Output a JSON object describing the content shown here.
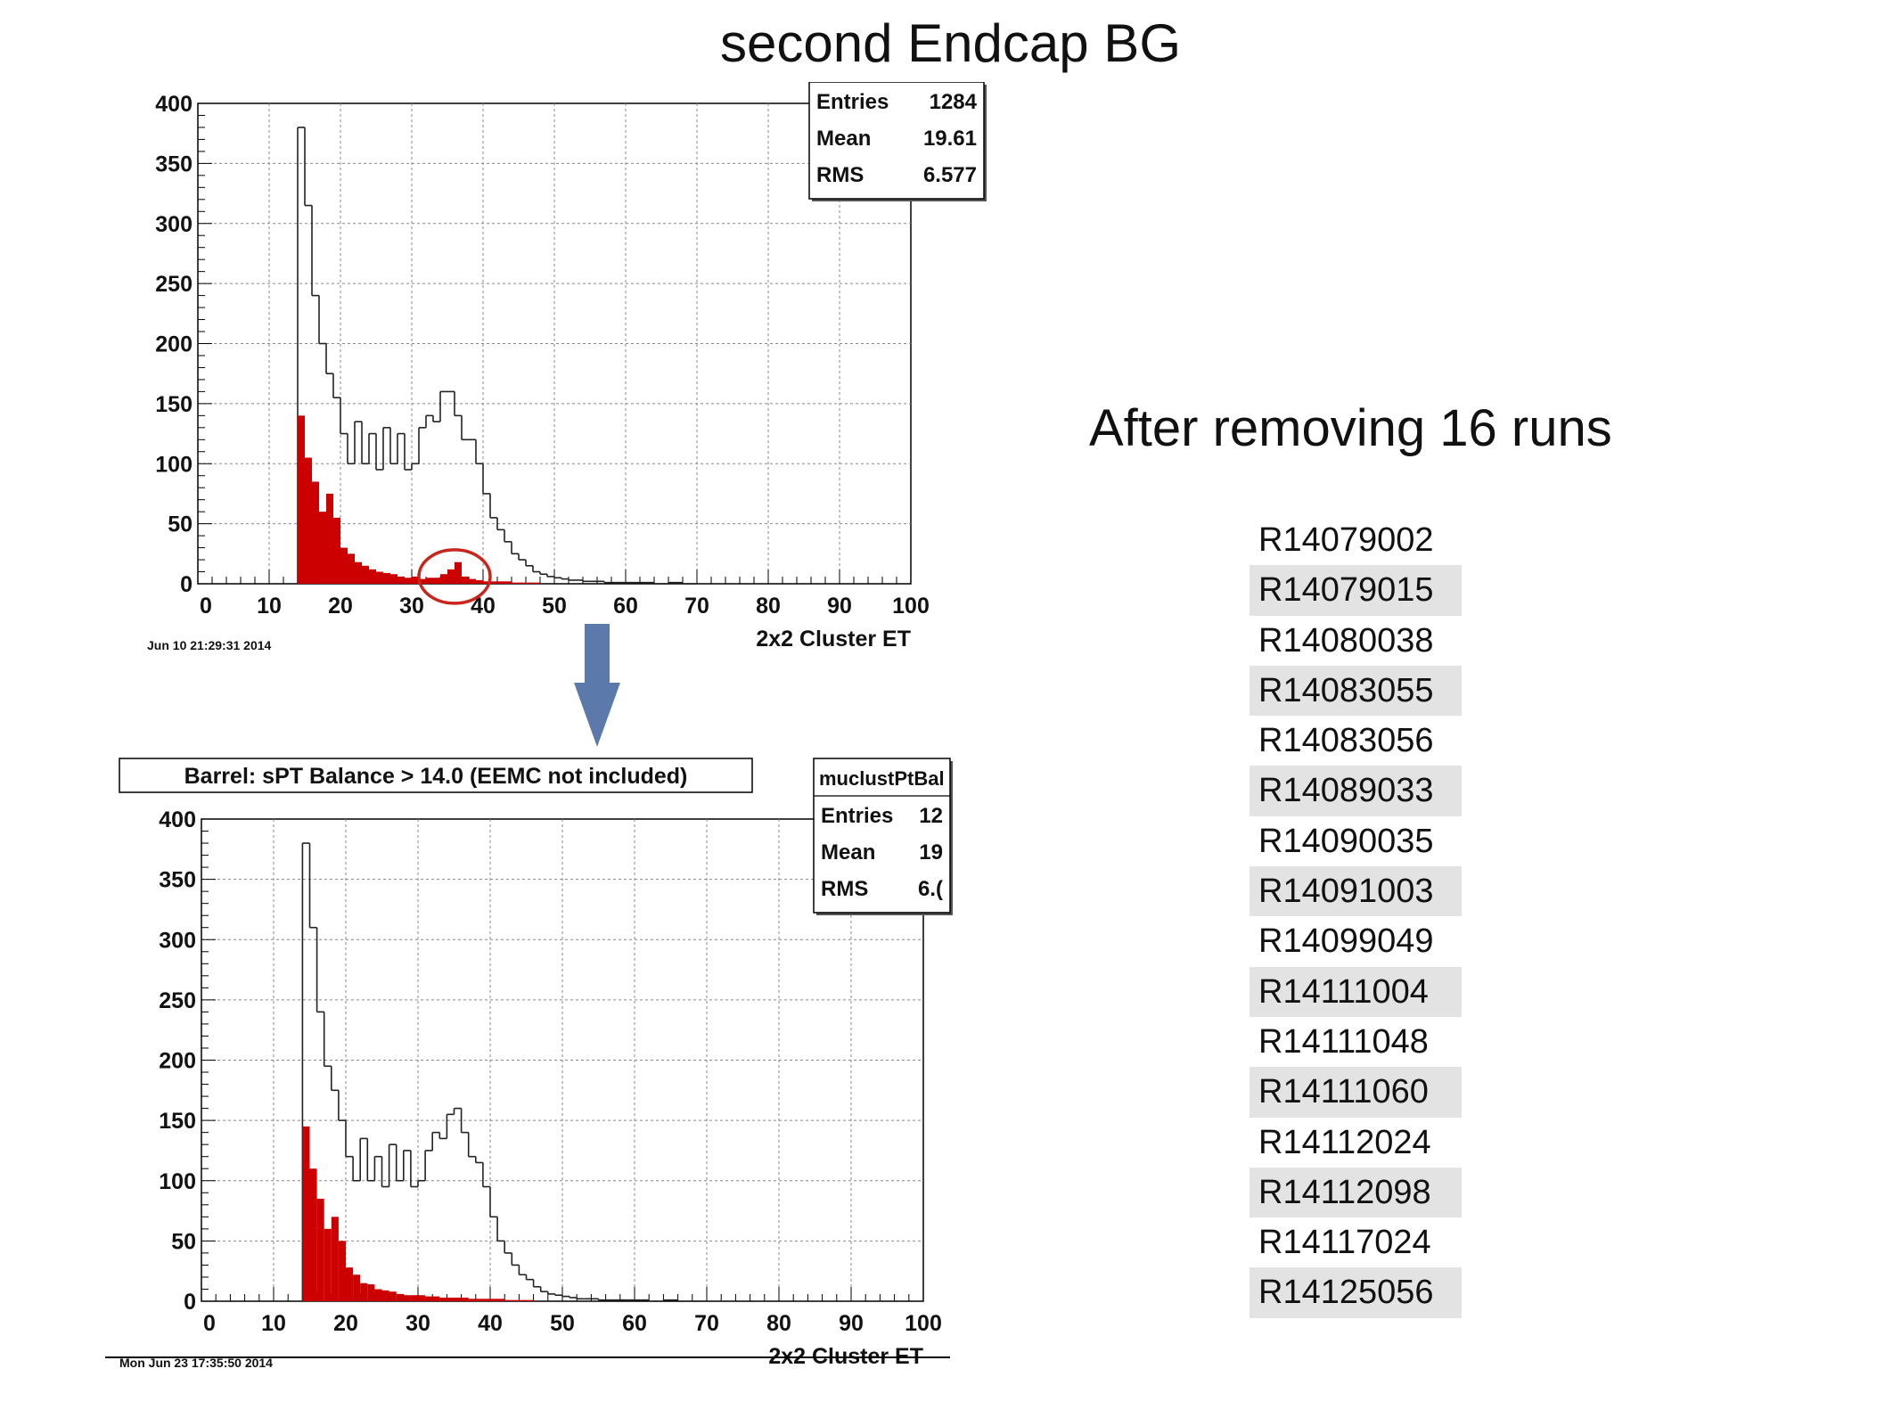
{
  "title": "second Endcap BG",
  "chart_data": [
    {
      "type": "histogram",
      "xlabel": "2x2 Cluster ET",
      "xlim": [
        0,
        100
      ],
      "ylim": [
        0,
        400
      ],
      "xticks": [
        "0",
        "10",
        "20",
        "30",
        "40",
        "50",
        "60",
        "70",
        "80",
        "90",
        "100"
      ],
      "yticks": [
        "0",
        "50",
        "100",
        "150",
        "200",
        "250",
        "300",
        "350",
        "400"
      ],
      "grid": true,
      "timestamp": "Jun 10 21:29:31 2014",
      "stats": [
        {
          "label": "Entries",
          "value": "1284"
        },
        {
          "label": "Mean",
          "value": "19.61"
        },
        {
          "label": "RMS",
          "value": "6.577"
        }
      ],
      "annotation": "red-circle-around-bump-near-35",
      "series": [
        {
          "color": "#000000",
          "x": [
            14,
            15,
            16,
            17,
            18,
            19,
            20,
            21,
            22,
            23,
            24,
            25,
            26,
            27,
            28,
            29,
            30,
            31,
            32,
            33,
            34,
            35,
            36,
            37,
            38,
            39,
            40,
            41,
            42,
            43,
            44,
            45,
            46,
            47,
            48,
            49,
            50,
            51,
            52,
            53,
            54,
            55,
            56,
            57,
            58,
            59,
            60,
            62,
            64,
            66,
            68
          ],
          "values": [
            380,
            315,
            240,
            200,
            175,
            155,
            125,
            100,
            135,
            100,
            125,
            95,
            130,
            100,
            125,
            95,
            100,
            130,
            140,
            135,
            160,
            160,
            140,
            120,
            120,
            100,
            75,
            55,
            45,
            35,
            25,
            20,
            15,
            10,
            8,
            6,
            5,
            4,
            3,
            3,
            2,
            2,
            2,
            1,
            1,
            1,
            1,
            1,
            0,
            1,
            0
          ]
        },
        {
          "color": "#cc0000",
          "x": [
            14,
            15,
            16,
            17,
            18,
            19,
            20,
            21,
            22,
            23,
            24,
            25,
            26,
            27,
            28,
            29,
            30,
            31,
            32,
            33,
            34,
            35,
            36,
            37,
            38,
            39,
            40,
            42,
            44,
            46
          ],
          "values": [
            140,
            105,
            85,
            60,
            75,
            55,
            30,
            25,
            18,
            15,
            12,
            10,
            9,
            8,
            6,
            5,
            6,
            4,
            5,
            5,
            8,
            12,
            18,
            6,
            4,
            3,
            2,
            2,
            1,
            1
          ]
        }
      ]
    },
    {
      "type": "histogram",
      "title": "Barrel: sPT Balance > 14.0 (EEMC not included)",
      "xlabel": "2x2 Cluster ET",
      "xlim": [
        0,
        100
      ],
      "ylim": [
        0,
        400
      ],
      "xticks": [
        "0",
        "10",
        "20",
        "30",
        "40",
        "50",
        "60",
        "70",
        "80",
        "90",
        "100"
      ],
      "yticks": [
        "0",
        "50",
        "100",
        "150",
        "200",
        "250",
        "300",
        "350",
        "400"
      ],
      "grid": true,
      "timestamp": "Mon Jun 23 17:35:50 2014",
      "stats_title": "muclustPtBal",
      "stats": [
        {
          "label": "Entries",
          "value": "12"
        },
        {
          "label": "Mean",
          "value": "19"
        },
        {
          "label": "RMS",
          "value": "6.("
        }
      ],
      "series": [
        {
          "color": "#000000",
          "x": [
            14,
            15,
            16,
            17,
            18,
            19,
            20,
            21,
            22,
            23,
            24,
            25,
            26,
            27,
            28,
            29,
            30,
            31,
            32,
            33,
            34,
            35,
            36,
            37,
            38,
            39,
            40,
            41,
            42,
            43,
            44,
            45,
            46,
            47,
            48,
            49,
            50,
            51,
            52,
            53,
            54,
            55,
            56,
            57,
            58,
            59,
            60,
            62,
            64,
            66,
            68
          ],
          "values": [
            380,
            310,
            240,
            195,
            175,
            150,
            120,
            100,
            135,
            100,
            120,
            95,
            130,
            100,
            125,
            95,
            100,
            125,
            140,
            135,
            155,
            160,
            140,
            120,
            115,
            95,
            70,
            50,
            40,
            30,
            22,
            18,
            12,
            8,
            6,
            5,
            4,
            3,
            2,
            2,
            2,
            1,
            1,
            1,
            1,
            1,
            1,
            0,
            1,
            0,
            0
          ]
        },
        {
          "color": "#cc0000",
          "x": [
            14,
            15,
            16,
            17,
            18,
            19,
            20,
            21,
            22,
            23,
            24,
            25,
            26,
            27,
            28,
            29,
            30,
            31,
            32,
            33,
            34,
            35,
            36,
            37,
            38,
            39,
            40,
            42,
            44,
            46
          ],
          "values": [
            145,
            110,
            85,
            60,
            70,
            50,
            28,
            22,
            15,
            14,
            10,
            9,
            8,
            6,
            5,
            5,
            5,
            4,
            4,
            3,
            3,
            3,
            3,
            2,
            2,
            2,
            2,
            1,
            1,
            0
          ]
        }
      ]
    }
  ],
  "subtitle": "After removing 16 runs",
  "runs": [
    "R14079002",
    "R14079015",
    "R14080038",
    "R14083055",
    "R14083056",
    "R14089033",
    "R14090035",
    "R14091003",
    "R14099049",
    "R14111004",
    "R14111048",
    "R14111060",
    "R14112024",
    "R14112098",
    "R14117024",
    "R14125056"
  ]
}
